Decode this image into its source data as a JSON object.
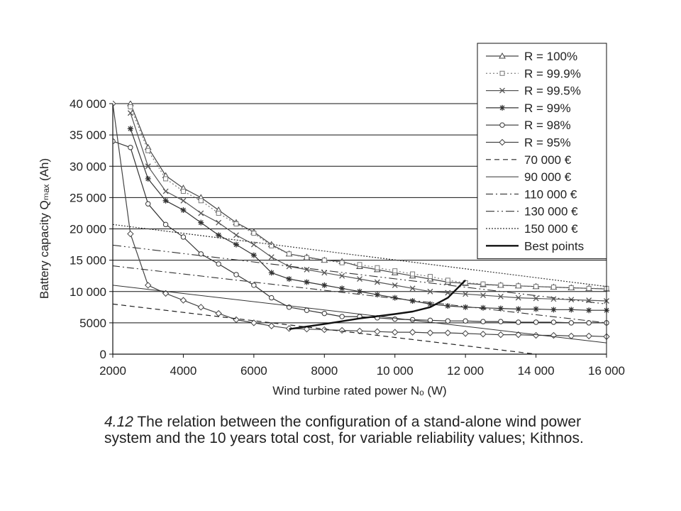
{
  "figure_caption": {
    "number": "4.12",
    "text": "The relation between the configuration of a stand-alone wind power system and the 10 years total cost, for variable reliability values; Kithnos."
  },
  "chart_data": {
    "type": "line",
    "xlabel": "Wind turbine rated power Nₒ (W)",
    "ylabel": "Battery capacity Qₘₐₓ (Ah)",
    "xlim": [
      2000,
      16000
    ],
    "ylim": [
      0,
      40000
    ],
    "xticks": [
      2000,
      4000,
      6000,
      8000,
      10000,
      12000,
      14000,
      16000
    ],
    "xtick_labels": [
      "2000",
      "4000",
      "6000",
      "8000",
      "10 000",
      "12 000",
      "14 000",
      "16 000"
    ],
    "yticks": [
      0,
      5000,
      10000,
      15000,
      20000,
      25000,
      30000,
      35000,
      40000
    ],
    "ytick_labels": [
      "0",
      "5000",
      "10 000",
      "15 000",
      "20 000",
      "25 000",
      "30 000",
      "35 000",
      "40 000"
    ],
    "grid": "horizontal",
    "legend_position": "top-right",
    "series": [
      {
        "name": "R = 100%",
        "style": "solid",
        "marker": "triangle",
        "x": [
          2500,
          3000,
          3500,
          4000,
          4500,
          5000,
          5500,
          6000,
          6500,
          7000,
          7500,
          8000,
          8500,
          9000,
          9500,
          10000,
          10500,
          11000,
          11500,
          12000,
          12500,
          13000,
          13500,
          14000,
          14500,
          15000,
          15500,
          16000
        ],
        "y": [
          40000,
          33000,
          28500,
          26500,
          25000,
          23000,
          21000,
          19500,
          17500,
          16000,
          15500,
          15000,
          14800,
          14000,
          13500,
          13000,
          12500,
          12000,
          11500,
          11300,
          11100,
          11000,
          10900,
          10800,
          10700,
          10600,
          10500,
          10400
        ]
      },
      {
        "name": "R = 99.9%",
        "style": "dotted",
        "marker": "square",
        "x": [
          2500,
          3000,
          3500,
          4000,
          4500,
          5000,
          5500,
          6000,
          6500,
          7000,
          7500,
          8000,
          8500,
          9000,
          9500,
          10000,
          10500,
          11000,
          11500,
          12000,
          12500,
          13000,
          13500,
          14000,
          14500,
          15000,
          15500,
          16000
        ],
        "y": [
          39500,
          32500,
          28000,
          26000,
          24500,
          22500,
          20800,
          19300,
          17300,
          16000,
          15400,
          15000,
          14600,
          14300,
          13800,
          13300,
          12800,
          12400,
          11800,
          11400,
          11200,
          11000,
          10900,
          10800,
          10700,
          10600,
          10500,
          10500
        ]
      },
      {
        "name": "R = 99.5%",
        "style": "solid",
        "marker": "x",
        "x": [
          2500,
          3000,
          3500,
          4000,
          4500,
          5000,
          5500,
          6000,
          6500,
          7000,
          7500,
          8000,
          8500,
          9000,
          9500,
          10000,
          10500,
          11000,
          11500,
          12000,
          12500,
          13000,
          13500,
          14000,
          14500,
          15000,
          15500,
          16000
        ],
        "y": [
          38500,
          30000,
          26000,
          24500,
          22500,
          21000,
          19000,
          17500,
          15500,
          14000,
          13500,
          13000,
          12500,
          12000,
          11500,
          11000,
          10500,
          10000,
          9800,
          9600,
          9400,
          9200,
          9000,
          8900,
          8800,
          8700,
          8600,
          8500
        ]
      },
      {
        "name": "R = 99%",
        "style": "solid",
        "marker": "star",
        "x": [
          2500,
          3000,
          3500,
          4000,
          4500,
          5000,
          5500,
          6000,
          6500,
          7000,
          7500,
          8000,
          8500,
          9000,
          9500,
          10000,
          10500,
          11000,
          11500,
          12000,
          12500,
          13000,
          13500,
          14000,
          14500,
          15000,
          15500,
          16000
        ],
        "y": [
          36000,
          28000,
          24500,
          23000,
          21000,
          19000,
          17500,
          15800,
          13000,
          12000,
          11500,
          11000,
          10500,
          10000,
          9500,
          9000,
          8500,
          8000,
          7700,
          7500,
          7400,
          7300,
          7200,
          7200,
          7100,
          7100,
          7000,
          7000
        ]
      },
      {
        "name": "R = 98%",
        "style": "solid",
        "marker": "circle",
        "x": [
          2000,
          2500,
          3000,
          3500,
          4000,
          4500,
          5000,
          5500,
          6000,
          6500,
          7000,
          7500,
          8000,
          8500,
          9000,
          9500,
          10000,
          10500,
          11000,
          11500,
          12000,
          12500,
          13000,
          13500,
          14000,
          14500,
          15000,
          15500,
          16000
        ],
        "y": [
          34000,
          33000,
          24000,
          20700,
          18700,
          16000,
          14400,
          12700,
          11000,
          9000,
          7500,
          7000,
          6500,
          6000,
          6000,
          5800,
          5600,
          5500,
          5400,
          5300,
          5300,
          5200,
          5200,
          5100,
          5100,
          5100,
          5000,
          5000,
          5000
        ]
      },
      {
        "name": "R = 95%",
        "style": "solid",
        "marker": "diamond",
        "x": [
          2000,
          2500,
          3000,
          3500,
          4000,
          4500,
          5000,
          5500,
          6000,
          6500,
          7000,
          7500,
          8000,
          8500,
          9000,
          9500,
          10000,
          10500,
          11000,
          11500,
          12000,
          12500,
          13000,
          13500,
          14000,
          14500,
          15000,
          15500,
          16000
        ],
        "y": [
          40000,
          19200,
          11000,
          9700,
          8600,
          7500,
          6500,
          5500,
          5000,
          4500,
          4100,
          4000,
          3900,
          3800,
          3700,
          3600,
          3500,
          3500,
          3400,
          3400,
          3300,
          3200,
          3100,
          3100,
          3000,
          3000,
          2900,
          2900,
          2800
        ]
      },
      {
        "name": "70 000 €",
        "style": "dashed",
        "marker": "none",
        "x": [
          2000,
          14000
        ],
        "y": [
          8000,
          0
        ]
      },
      {
        "name": "90 000 €",
        "style": "solid-thin",
        "marker": "none",
        "x": [
          2000,
          16000
        ],
        "y": [
          11000,
          1800
        ]
      },
      {
        "name": "110 000 €",
        "style": "dashdot",
        "marker": "none",
        "x": [
          2000,
          16000
        ],
        "y": [
          14100,
          5000
        ]
      },
      {
        "name": "130 000 €",
        "style": "dashdotdot",
        "marker": "none",
        "x": [
          2000,
          16000
        ],
        "y": [
          17400,
          8000
        ]
      },
      {
        "name": "150 000 €",
        "style": "dotted-fine",
        "marker": "none",
        "x": [
          2000,
          16000
        ],
        "y": [
          20700,
          10800
        ]
      },
      {
        "name": "Best points",
        "style": "bold",
        "marker": "none",
        "x": [
          7000,
          8000,
          9000,
          10000,
          10500,
          11000,
          11500,
          12000
        ],
        "y": [
          4000,
          4800,
          5700,
          6400,
          6800,
          7500,
          9000,
          11800
        ]
      }
    ]
  }
}
